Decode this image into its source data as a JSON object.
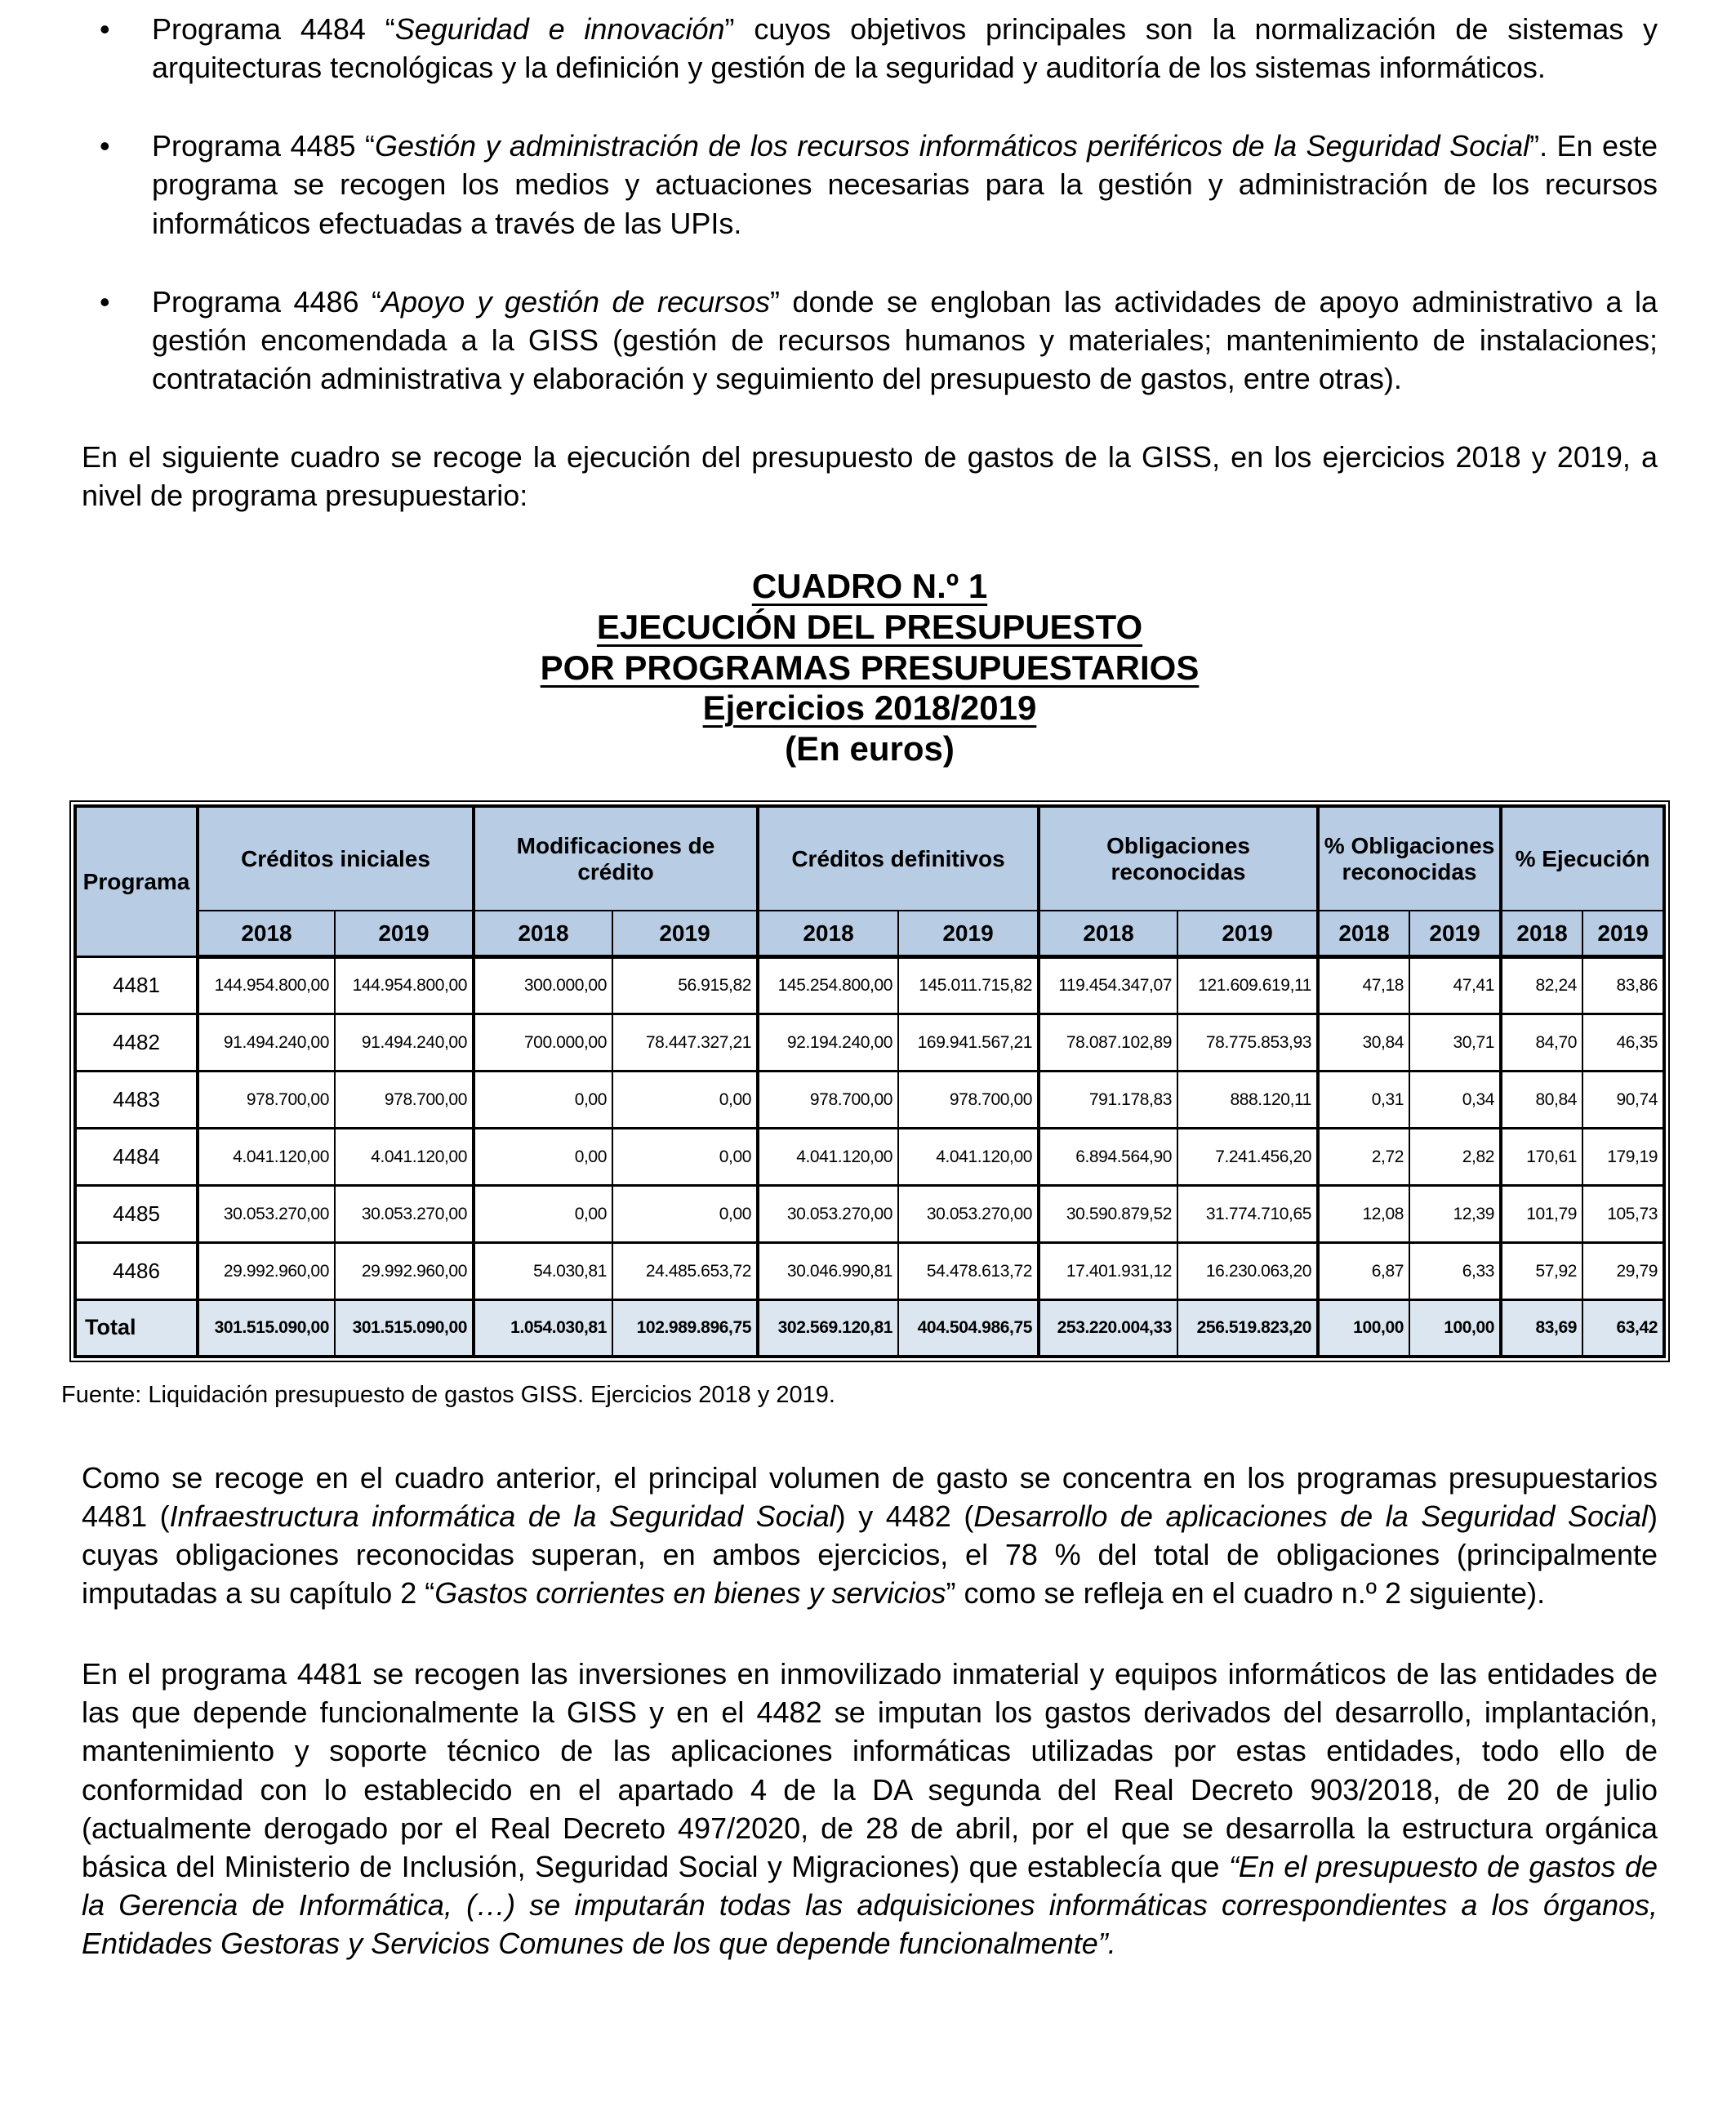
{
  "bullet_char": "•",
  "bullets": [
    {
      "segments": [
        {
          "text": "Programa 4484 “"
        },
        {
          "text": "Seguridad e innovación",
          "italic": true
        },
        {
          "text": "” cuyos objetivos principales son la normalización de sistemas y arquitecturas tecnológicas y la definición y gestión de la seguridad y auditoría de los sistemas informáticos."
        }
      ]
    },
    {
      "segments": [
        {
          "text": "Programa 4485 “"
        },
        {
          "text": "Gestión y administración de los recursos informáticos periféricos de la Seguridad Social",
          "italic": true
        },
        {
          "text": "”. En este programa se recogen los medios y actuaciones necesarias para la gestión y administración de los recursos informáticos efectuadas a través de las UPIs."
        }
      ]
    },
    {
      "segments": [
        {
          "text": "Programa 4486 “"
        },
        {
          "text": "Apoyo y gestión de recursos",
          "italic": true
        },
        {
          "text": "” donde se engloban las actividades de apoyo administrativo a la gestión encomendada a la GISS (gestión de recursos humanos y materiales; mantenimiento de instalaciones; contratación administrativa y elaboración y seguimiento del presupuesto de gastos, entre otras)."
        }
      ]
    }
  ],
  "intro_paragraph": "En el siguiente cuadro se recoge la ejecución del presupuesto de gastos de la GISS, en los ejercicios 2018 y 2019, a nivel de programa presupuestario:",
  "headings": {
    "line1": "CUADRO N.º 1",
    "line2": "EJECUCIÓN DEL PRESUPUESTO",
    "line3": "POR PROGRAMAS PRESUPUESTARIOS",
    "line4": "Ejercicios 2018/2019",
    "line5": "(En euros)"
  },
  "table": {
    "corner_label": "Programa",
    "groups": [
      "Créditos iniciales",
      "Modificaciones de crédito",
      "Créditos definitivos",
      "Obligaciones reconocidas",
      "% Obligaciones reconocidas",
      "% Ejecución"
    ],
    "years": [
      "2018",
      "2019"
    ],
    "rows": [
      {
        "program": "4481",
        "values": [
          "144.954.800,00",
          "144.954.800,00",
          "300.000,00",
          "56.915,82",
          "145.254.800,00",
          "145.011.715,82",
          "119.454.347,07",
          "121.609.619,11",
          "47,18",
          "47,41",
          "82,24",
          "83,86"
        ]
      },
      {
        "program": "4482",
        "values": [
          "91.494.240,00",
          "91.494.240,00",
          "700.000,00",
          "78.447.327,21",
          "92.194.240,00",
          "169.941.567,21",
          "78.087.102,89",
          "78.775.853,93",
          "30,84",
          "30,71",
          "84,70",
          "46,35"
        ]
      },
      {
        "program": "4483",
        "values": [
          "978.700,00",
          "978.700,00",
          "0,00",
          "0,00",
          "978.700,00",
          "978.700,00",
          "791.178,83",
          "888.120,11",
          "0,31",
          "0,34",
          "80,84",
          "90,74"
        ]
      },
      {
        "program": "4484",
        "values": [
          "4.041.120,00",
          "4.041.120,00",
          "0,00",
          "0,00",
          "4.041.120,00",
          "4.041.120,00",
          "6.894.564,90",
          "7.241.456,20",
          "2,72",
          "2,82",
          "170,61",
          "179,19"
        ]
      },
      {
        "program": "4485",
        "values": [
          "30.053.270,00",
          "30.053.270,00",
          "0,00",
          "0,00",
          "30.053.270,00",
          "30.053.270,00",
          "30.590.879,52",
          "31.774.710,65",
          "12,08",
          "12,39",
          "101,79",
          "105,73"
        ]
      },
      {
        "program": "4486",
        "values": [
          "29.992.960,00",
          "29.992.960,00",
          "54.030,81",
          "24.485.653,72",
          "30.046.990,81",
          "54.478.613,72",
          "17.401.931,12",
          "16.230.063,20",
          "6,87",
          "6,33",
          "57,92",
          "29,79"
        ]
      },
      {
        "program": "Total",
        "is_total": true,
        "values": [
          "301.515.090,00",
          "301.515.090,00",
          "1.054.030,81",
          "102.989.896,75",
          "302.569.120,81",
          "404.504.986,75",
          "253.220.004,33",
          "256.519.823,20",
          "100,00",
          "100,00",
          "83,69",
          "63,42"
        ]
      }
    ],
    "source_note": "Fuente: Liquidación presupuesto de gastos GISS. Ejercicios 2018 y 2019."
  },
  "paragraph_cuadro": {
    "segments": [
      {
        "text": "Como se recoge en el cuadro anterior, el principal volumen de gasto se concentra en los programas presupuestarios 4481 ("
      },
      {
        "text": "Infraestructura informática de la Seguridad Social",
        "italic": true
      },
      {
        "text": ") y 4482 ("
      },
      {
        "text": "Desarrollo de aplicaciones de la Seguridad Social",
        "italic": true
      },
      {
        "text": ") cuyas obligaciones reconocidas superan, en ambos ejercicios, el 78 % del total de obligaciones (principalmente imputadas a su capítulo 2 “"
      },
      {
        "text": "Gastos corrientes en bienes y servicios",
        "italic": true
      },
      {
        "text": "” como se refleja en el cuadro n.º 2 siguiente)."
      }
    ]
  },
  "paragraph_programa": {
    "segments": [
      {
        "text": "En el programa 4481 se recogen las inversiones en inmovilizado inmaterial y equipos informáticos de las entidades de las que depende funcionalmente la GISS y en el 4482 se imputan los gastos derivados del desarrollo, implantación, mantenimiento y soporte técnico de las aplicaciones informáticas utilizadas por estas entidades, todo ello de conformidad con lo establecido en el apartado 4 de la DA segunda del Real Decreto 903/2018, de 20 de julio (actualmente derogado por el Real Decreto 497/2020, de 28 de abril, por el que se desarrolla la estructura orgánica básica del Ministerio de Inclusión, Seguridad Social y Migraciones) que establecía que "
      },
      {
        "text": "“En el presupuesto de gastos de la Gerencia de Informática, (…) se imputarán todas las adquisiciones informáticas correspondientes a los órganos, Entidades Gestoras y Servicios Comunes de los que depende funcionalmente”.",
        "italic": true
      }
    ]
  },
  "colors": {
    "header_bg": "#B8CCE4",
    "total_bg": "#DCE6F1",
    "border": "#000000",
    "text": "#000000"
  }
}
